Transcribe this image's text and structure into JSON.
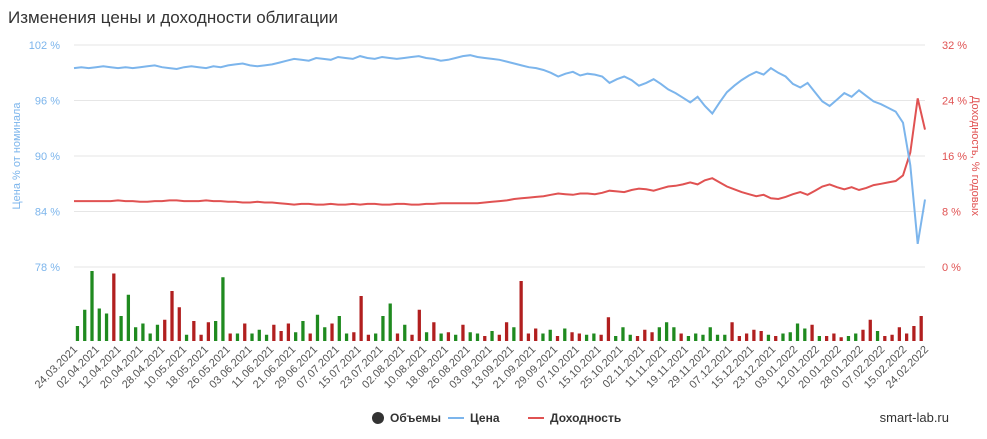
{
  "chart_data": {
    "type": "line",
    "title": "Изменения цены и доходности облигации",
    "y_left_label": "Цена % от номинала",
    "y_right_label": "Доходность, % годовых",
    "y_left_ticks": [
      "102 %",
      "96 %",
      "90 %",
      "84 %",
      "78 %"
    ],
    "y_left_range": [
      78,
      102
    ],
    "y_right_ticks": [
      "32 %",
      "24 %",
      "16 %",
      "8 %",
      "0 %"
    ],
    "y_right_range": [
      0,
      32
    ],
    "x_labels": [
      "24.03.2021",
      "02.04.2021",
      "12.04.2021",
      "20.04.2021",
      "28.04.2021",
      "10.05.2021",
      "18.05.2021",
      "26.05.2021",
      "03.06.2021",
      "11.06.2021",
      "21.06.2021",
      "29.06.2021",
      "07.07.2021",
      "15.07.2021",
      "23.07.2021",
      "02.08.2021",
      "10.08.2021",
      "18.08.2021",
      "26.08.2021",
      "03.09.2021",
      "13.09.2021",
      "21.09.2021",
      "29.09.2021",
      "07.10.2021",
      "15.10.2021",
      "25.10.2021",
      "02.11.2021",
      "11.11.2021",
      "19.11.2021",
      "29.11.2021",
      "07.12.2021",
      "15.12.2021",
      "23.12.2021",
      "03.01.2022",
      "12.01.2022",
      "20.01.2022",
      "28.01.2022",
      "07.02.2022",
      "15.02.2022",
      "24.02.2022"
    ],
    "series": [
      {
        "name": "Объемы",
        "color": "#333333"
      },
      {
        "name": "Цена",
        "color": "#7cb5ec"
      },
      {
        "name": "Доходность",
        "color": "#e05252"
      }
    ],
    "price_values": [
      99.5,
      99.6,
      99.5,
      99.6,
      99.7,
      99.6,
      99.5,
      99.6,
      99.5,
      99.6,
      99.7,
      99.8,
      99.6,
      99.5,
      99.4,
      99.6,
      99.7,
      99.6,
      99.5,
      99.7,
      99.6,
      99.8,
      99.9,
      100.0,
      99.8,
      99.7,
      99.8,
      99.9,
      100.1,
      100.3,
      100.5,
      100.4,
      100.3,
      100.6,
      100.5,
      100.4,
      100.7,
      100.6,
      100.5,
      100.8,
      100.6,
      100.5,
      100.7,
      100.6,
      100.5,
      100.6,
      100.7,
      100.8,
      100.6,
      100.5,
      100.3,
      100.4,
      100.6,
      100.8,
      100.9,
      100.7,
      100.6,
      100.5,
      100.4,
      100.2,
      100.0,
      99.8,
      99.6,
      99.5,
      99.3,
      99.0,
      98.6,
      98.9,
      99.1,
      98.7,
      98.9,
      98.8,
      98.6,
      97.9,
      98.3,
      98.6,
      98.2,
      97.6,
      97.9,
      98.3,
      97.8,
      97.2,
      96.8,
      96.3,
      95.8,
      96.4,
      95.4,
      94.6,
      95.8,
      96.9,
      97.6,
      98.2,
      98.7,
      99.1,
      98.8,
      99.5,
      99.0,
      98.6,
      97.8,
      97.4,
      97.9,
      96.9,
      95.9,
      95.4,
      96.1,
      96.8,
      96.4,
      97.1,
      96.5,
      95.9,
      95.6,
      95.2,
      94.8,
      93.6,
      89.0,
      80.5,
      85.3
    ],
    "yield_values": [
      9.5,
      9.5,
      9.5,
      9.5,
      9.5,
      9.5,
      9.6,
      9.5,
      9.5,
      9.4,
      9.4,
      9.5,
      9.5,
      9.6,
      9.6,
      9.5,
      9.5,
      9.5,
      9.6,
      9.5,
      9.5,
      9.4,
      9.4,
      9.3,
      9.3,
      9.4,
      9.3,
      9.3,
      9.2,
      9.1,
      9.0,
      9.1,
      9.1,
      9.0,
      9.0,
      9.1,
      9.0,
      9.0,
      9.1,
      9.0,
      9.1,
      9.1,
      9.0,
      9.0,
      9.1,
      9.1,
      9.0,
      9.0,
      9.1,
      9.1,
      9.2,
      9.2,
      9.2,
      9.2,
      9.2,
      9.2,
      9.3,
      9.4,
      9.5,
      9.6,
      9.8,
      9.9,
      10.0,
      10.1,
      10.2,
      10.4,
      10.6,
      10.5,
      10.4,
      10.6,
      10.6,
      10.5,
      10.7,
      11.0,
      10.9,
      10.8,
      11.1,
      11.3,
      11.2,
      11.0,
      11.3,
      11.6,
      11.7,
      11.9,
      12.2,
      11.9,
      12.5,
      12.8,
      12.2,
      11.6,
      11.2,
      10.8,
      10.5,
      10.2,
      10.4,
      9.9,
      9.8,
      10.1,
      10.5,
      10.8,
      10.4,
      11.0,
      11.6,
      11.9,
      11.5,
      11.2,
      11.5,
      11.1,
      11.4,
      11.8,
      12.0,
      12.2,
      12.4,
      13.2,
      16.5,
      24.3,
      19.8
    ],
    "volume_values": [
      1.2,
      2.5,
      5.6,
      2.6,
      2.2,
      5.4,
      2.0,
      3.7,
      1.1,
      1.4,
      0.6,
      1.3,
      1.7,
      4.0,
      2.7,
      0.5,
      1.6,
      0.5,
      1.5,
      1.6,
      5.1,
      0.6,
      0.6,
      1.4,
      0.6,
      0.9,
      0.5,
      1.3,
      0.8,
      1.4,
      0.7,
      1.6,
      0.6,
      2.1,
      1.1,
      1.4,
      2.0,
      0.6,
      0.7,
      3.6,
      0.5,
      0.6,
      2.0,
      3.0,
      0.6,
      1.3,
      0.5,
      2.5,
      0.7,
      1.5,
      0.6,
      0.7,
      0.5,
      1.3,
      0.7,
      0.6,
      0.4,
      0.8,
      0.5,
      1.5,
      1.1,
      4.8,
      0.6,
      1.0,
      0.6,
      0.9,
      0.4,
      1.0,
      0.7,
      0.6,
      0.5,
      0.6,
      0.5,
      1.9,
      0.4,
      1.1,
      0.5,
      0.4,
      0.9,
      0.7,
      1.1,
      1.5,
      1.1,
      0.6,
      0.4,
      0.6,
      0.5,
      1.1,
      0.5,
      0.5,
      1.5,
      0.4,
      0.6,
      0.9,
      0.8,
      0.5,
      0.4,
      0.6,
      0.7,
      1.4,
      1.0,
      1.3,
      0.4,
      0.4,
      0.6,
      0.3,
      0.4,
      0.6,
      0.9,
      1.7,
      0.8,
      0.4,
      0.5,
      1.1,
      0.6,
      1.2,
      2.0
    ],
    "volume_colors": [
      "g",
      "g",
      "g",
      "g",
      "g",
      "r",
      "g",
      "g",
      "g",
      "g",
      "g",
      "g",
      "r",
      "r",
      "r",
      "g",
      "r",
      "r",
      "r",
      "g",
      "g",
      "r",
      "g",
      "r",
      "g",
      "g",
      "g",
      "r",
      "r",
      "r",
      "g",
      "g",
      "r",
      "g",
      "g",
      "r",
      "g",
      "g",
      "r",
      "r",
      "r",
      "g",
      "g",
      "g",
      "r",
      "g",
      "r",
      "r",
      "g",
      "r",
      "g",
      "r",
      "g",
      "r",
      "g",
      "g",
      "r",
      "g",
      "r",
      "r",
      "g",
      "r",
      "r",
      "r",
      "g",
      "g",
      "r",
      "g",
      "r",
      "r",
      "g",
      "g",
      "r",
      "r",
      "g",
      "g",
      "g",
      "r",
      "r",
      "r",
      "g",
      "g",
      "g",
      "r",
      "g",
      "g",
      "g",
      "g",
      "g",
      "g",
      "r",
      "r",
      "r",
      "r",
      "r",
      "g",
      "r",
      "g",
      "g",
      "g",
      "g",
      "r",
      "g",
      "r",
      "r",
      "r",
      "g",
      "g",
      "r",
      "r",
      "g",
      "r",
      "r",
      "r",
      "r",
      "r",
      "r"
    ],
    "legend_position": "bottom-center",
    "grid": true
  },
  "watermark": "smart-lab.ru",
  "colors": {
    "price_line": "#7cb5ec",
    "yield_line": "#e05252",
    "volume_green": "#1f8a1f",
    "volume_red": "#b11f1f",
    "grid": "#e6e6e6",
    "axis_text": "#666666"
  }
}
